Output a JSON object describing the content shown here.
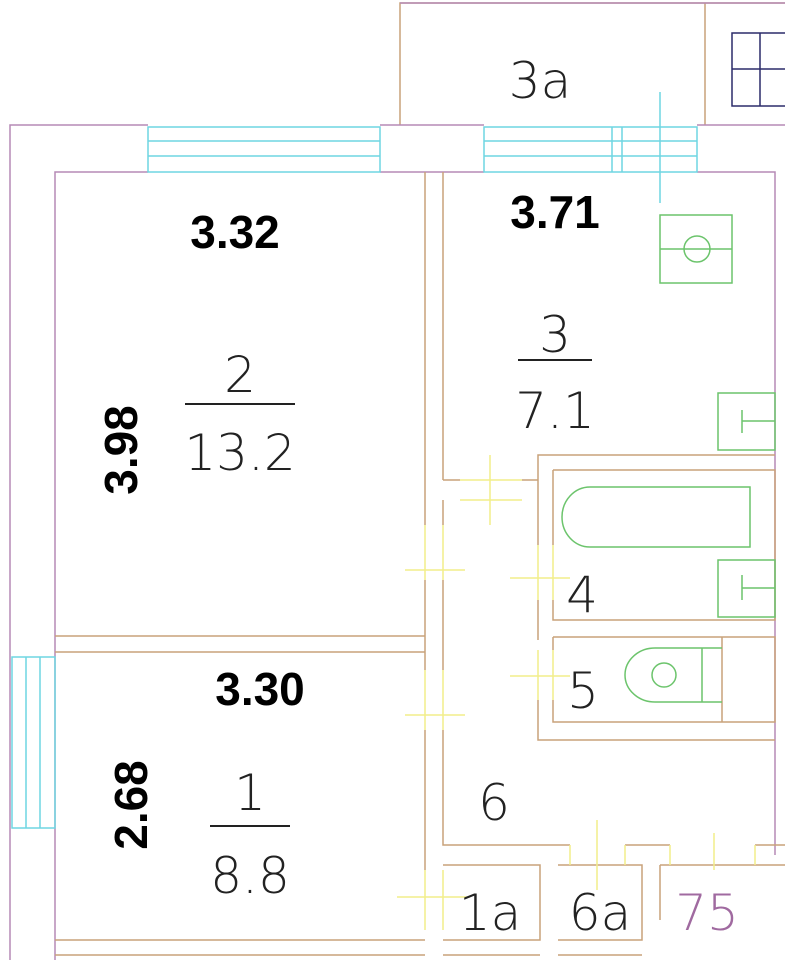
{
  "rooms": [
    {
      "number": "2",
      "area": "13.2",
      "width": "3.32",
      "length": "3.98"
    },
    {
      "number": "1",
      "area": "8.8",
      "width": "3.30",
      "length": "2.68"
    },
    {
      "number": "3",
      "area": "7.1",
      "width": "3.71"
    },
    {
      "number": "4"
    },
    {
      "number": "5"
    },
    {
      "number": "6"
    },
    {
      "number": "3a"
    },
    {
      "number": "1a"
    },
    {
      "number": "6a"
    }
  ],
  "neighbor_label": "75",
  "colors": {
    "walls": "#c9a27a",
    "outer": "#b58ab5",
    "windows": "#6fd6e2",
    "doors": "#f2ee8a",
    "fixtures": "#6cc46c"
  }
}
